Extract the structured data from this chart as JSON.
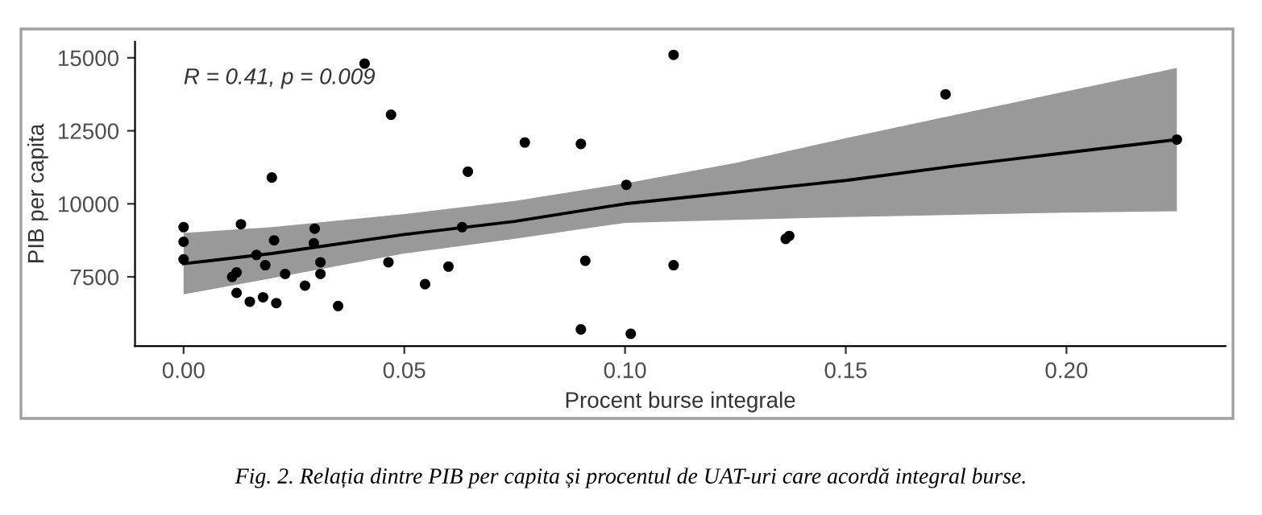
{
  "chart_data": {
    "type": "scatter",
    "xlabel": "Procent burse integrale",
    "ylabel": "PIB per capita",
    "annotations": [
      "R = 0.41, p = 0.009",
      "Fig. 2. Relația dintre PIB per capita și procentul de UAT-uri care acordă integral burse."
    ],
    "xlim": [
      -0.011,
      0.236
    ],
    "ylim": [
      5130,
      15550
    ],
    "xticks": [
      {
        "value": 0,
        "label": "0.00"
      },
      {
        "value": 0.05,
        "label": "0.05"
      },
      {
        "value": 0.1,
        "label": "0.10"
      },
      {
        "value": 0.15,
        "label": "0.15"
      },
      {
        "value": 0.2,
        "label": "0.20"
      }
    ],
    "yticks": [
      7500,
      10000,
      12500,
      15000
    ],
    "grid": false,
    "legend": false,
    "series": [
      {
        "marker": "circle",
        "color": "#000000",
        "x": [
          0.0,
          0.0,
          0.0,
          0.011,
          0.012,
          0.012,
          0.013,
          0.015,
          0.0165,
          0.018,
          0.0185,
          0.02,
          0.0205,
          0.021,
          0.023,
          0.0275,
          0.0297,
          0.0295,
          0.031,
          0.031,
          0.035,
          0.041,
          0.047,
          0.0464,
          0.0547,
          0.06,
          0.0644,
          0.0631,
          0.0773,
          0.09,
          0.091,
          0.09,
          0.1003,
          0.1013,
          0.111,
          0.111,
          0.1364,
          0.1372,
          0.1726,
          0.225
        ],
        "values": [
          9200,
          8700,
          8100,
          7500,
          7650,
          6950,
          9300,
          6650,
          8250,
          6800,
          7900,
          10900,
          8750,
          6600,
          7600,
          7200,
          9150,
          8650,
          8000,
          7600,
          6500,
          14800,
          13050,
          8000,
          7250,
          7850,
          11100,
          9200,
          12100,
          12050,
          8050,
          5700,
          10650,
          5550,
          15100,
          7900,
          8800,
          8900,
          13750,
          12200
        ]
      },
      {
        "type": "line",
        "color": "#000000",
        "x": [
          0.0,
          0.02,
          0.05,
          0.075,
          0.1,
          0.125,
          0.15,
          0.175,
          0.2,
          0.225
        ],
        "values": [
          7950,
          8300,
          8950,
          9400,
          10000,
          10400,
          10800,
          11300,
          11750,
          12200
        ],
        "lower": [
          6900,
          7450,
          8300,
          8800,
          9350,
          9450,
          9550,
          9620,
          9700,
          9750
        ],
        "upper": [
          9000,
          9200,
          9650,
          10100,
          10700,
          11400,
          12250,
          13050,
          13850,
          14650
        ]
      }
    ]
  }
}
